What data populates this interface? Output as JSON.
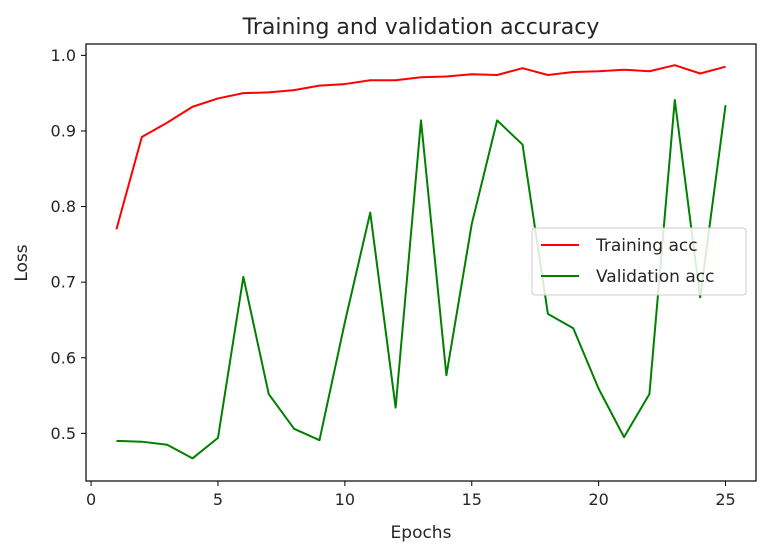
{
  "chart_data": {
    "type": "line",
    "title": "Training and validation accuracy",
    "xlabel": "Epochs",
    "ylabel": "Loss",
    "xlim": [
      -0.2,
      26.2
    ],
    "ylim": [
      0.437,
      1.015
    ],
    "xticks": [
      0,
      5,
      10,
      15,
      20,
      25
    ],
    "yticks": [
      0.5,
      0.6,
      0.7,
      0.8,
      0.9,
      1.0
    ],
    "xtick_labels": [
      "0",
      "5",
      "10",
      "15",
      "20",
      "25"
    ],
    "ytick_labels": [
      "0.5",
      "0.6",
      "0.7",
      "0.8",
      "0.9",
      "1.0"
    ],
    "grid": false,
    "legend_position": "center-right",
    "x": [
      1,
      2,
      3,
      4,
      5,
      6,
      7,
      8,
      9,
      10,
      11,
      12,
      13,
      14,
      15,
      16,
      17,
      18,
      19,
      20,
      21,
      22,
      23,
      24,
      25
    ],
    "series": [
      {
        "name": "Training acc",
        "color": "#ff0000",
        "values": [
          0.77,
          0.892,
          0.911,
          0.932,
          0.943,
          0.95,
          0.951,
          0.954,
          0.96,
          0.962,
          0.967,
          0.967,
          0.971,
          0.972,
          0.975,
          0.974,
          0.983,
          0.974,
          0.978,
          0.979,
          0.981,
          0.979,
          0.987,
          0.976,
          0.985
        ]
      },
      {
        "name": "Validation acc",
        "color": "#008000",
        "values": [
          0.49,
          0.489,
          0.485,
          0.467,
          0.494,
          0.707,
          0.552,
          0.506,
          0.491,
          0.647,
          0.792,
          0.534,
          0.914,
          0.577,
          0.777,
          0.914,
          0.882,
          0.658,
          0.639,
          0.559,
          0.495,
          0.552,
          0.941,
          0.68,
          0.934
        ]
      }
    ]
  }
}
